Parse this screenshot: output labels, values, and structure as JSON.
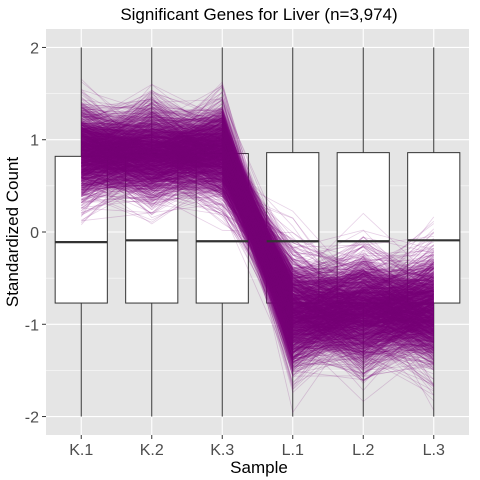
{
  "chart_data": {
    "type": "parallel-coordinates-boxplot",
    "title": "Significant Genes for Liver (n=3,974)",
    "xlabel": "Sample",
    "ylabel": "Standardized Count",
    "categories": [
      "K.1",
      "K.2",
      "K.3",
      "L.1",
      "L.2",
      "L.3"
    ],
    "ylim": [
      -2.2,
      2.2
    ],
    "yticks": [
      {
        "value": -2,
        "label": "-2"
      },
      {
        "value": -1,
        "label": "-1"
      },
      {
        "value": 0,
        "label": "0"
      },
      {
        "value": 1,
        "label": "1"
      },
      {
        "value": 2,
        "label": "2"
      }
    ],
    "grid": true,
    "boxplots": [
      {
        "category": "K.1",
        "min": -2.0,
        "q1": -0.77,
        "median": -0.11,
        "q3": 0.82,
        "max": 2.0
      },
      {
        "category": "K.2",
        "min": -2.0,
        "q1": -0.77,
        "median": -0.09,
        "q3": 0.85,
        "max": 2.0
      },
      {
        "category": "K.3",
        "min": -2.0,
        "q1": -0.77,
        "median": -0.1,
        "q3": 0.85,
        "max": 2.0
      },
      {
        "category": "L.1",
        "min": -2.0,
        "q1": -0.77,
        "median": -0.1,
        "q3": 0.86,
        "max": 2.0
      },
      {
        "category": "L.2",
        "min": -2.0,
        "q1": -0.77,
        "median": -0.1,
        "q3": 0.86,
        "max": 2.0
      },
      {
        "category": "L.3",
        "min": -2.0,
        "q1": -0.77,
        "median": -0.09,
        "q3": 0.86,
        "max": 2.0
      }
    ],
    "lines": {
      "count_shown": 3974,
      "k_center": 0.85,
      "k_spread": 0.25,
      "l_center": -0.85,
      "l_spread": 0.3,
      "color": "#7b007b",
      "opacity": 0.18
    },
    "colors": {
      "panel": "#e5e5e5",
      "grid_major": "#ffffff",
      "box_fill": "#ffffff",
      "box_stroke": "#333333",
      "line": "#7b007b"
    }
  }
}
